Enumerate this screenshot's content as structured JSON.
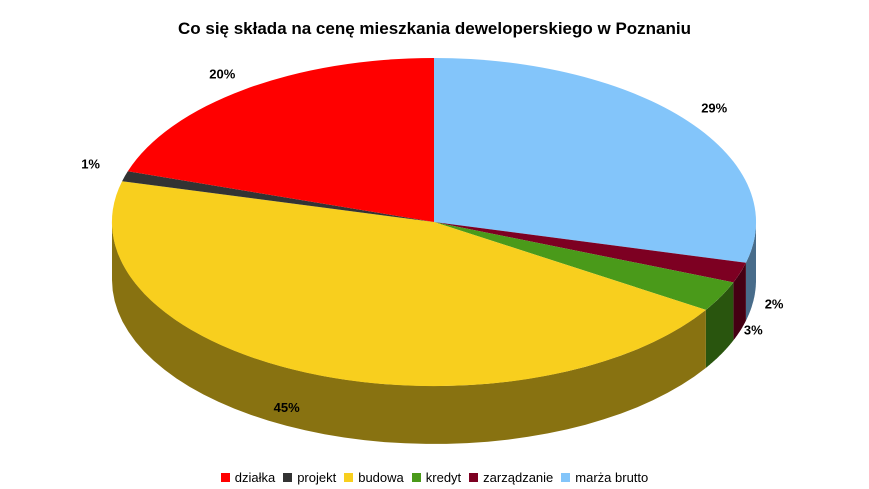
{
  "chart_data": {
    "type": "pie",
    "title": "Co się składa na cenę mieszkania deweloperskiego w Poznaniu",
    "legend_position": "bottom",
    "slices": [
      {
        "name": "działka",
        "value": 20,
        "label": "20%",
        "color": "#ff0000"
      },
      {
        "name": "projekt",
        "value": 1,
        "label": "1%",
        "color": "#333333"
      },
      {
        "name": "budowa",
        "value": 45,
        "label": "45%",
        "color": "#f8cf1e"
      },
      {
        "name": "kredyt",
        "value": 3,
        "label": "3%",
        "color": "#4a9a1a"
      },
      {
        "name": "zarządzanie",
        "value": 2,
        "label": "2%",
        "color": "#7d0022"
      },
      {
        "name": "marża brutto",
        "value": 29,
        "label": "29%",
        "color": "#83c5fa"
      }
    ]
  }
}
